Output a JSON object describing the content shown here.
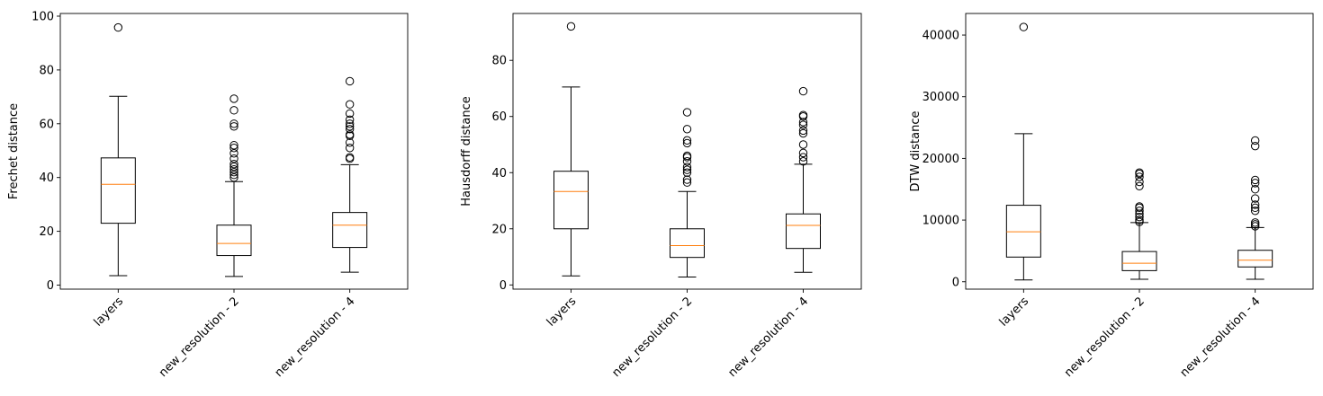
{
  "chart_data": [
    {
      "type": "box",
      "ylabel": "Frechet distance",
      "categories": [
        "layers",
        "new_resolution - 2",
        "new_resolution - 4"
      ],
      "yticks": [
        0,
        20,
        40,
        60,
        80,
        100
      ],
      "ylim": [
        -1.5,
        101
      ],
      "boxes": [
        {
          "whislo": 3.5,
          "q1": 23,
          "med": 37.5,
          "q3": 47.3,
          "whishi": 70.2,
          "fliers": [
            95.8
          ]
        },
        {
          "whislo": 3.2,
          "q1": 11,
          "med": 15.5,
          "q3": 22.3,
          "whishi": 38.5,
          "fliers": [
            40,
            41,
            42,
            43,
            44,
            45,
            47,
            49,
            51,
            52,
            59,
            60,
            65,
            69.3
          ]
        },
        {
          "whislo": 4.8,
          "q1": 14,
          "med": 22.3,
          "q3": 27,
          "whishi": 44.8,
          "fliers": [
            47,
            47.5,
            51,
            53,
            55.5,
            56,
            58,
            59,
            60,
            61.5,
            63.8,
            67.2,
            75.8
          ]
        }
      ]
    },
    {
      "type": "box",
      "ylabel": "Hausdorff distance",
      "categories": [
        "layers",
        "new_resolution - 2",
        "new_resolution - 4"
      ],
      "yticks": [
        0,
        20,
        40,
        60,
        80
      ],
      "ylim": [
        -1.5,
        96.7
      ],
      "boxes": [
        {
          "whislo": 3.2,
          "q1": 20,
          "med": 33.3,
          "q3": 40.5,
          "whishi": 70.5,
          "fliers": [
            92.1
          ]
        },
        {
          "whislo": 2.8,
          "q1": 9.8,
          "med": 14,
          "q3": 20,
          "whishi": 33.3,
          "fliers": [
            36.5,
            37.5,
            40,
            41,
            42,
            44,
            45.5,
            46,
            50.5,
            51.5,
            55.5,
            61.5
          ]
        },
        {
          "whislo": 4.5,
          "q1": 13,
          "med": 21.2,
          "q3": 25.3,
          "whishi": 43,
          "fliers": [
            44,
            45.5,
            47,
            50,
            54,
            55,
            57,
            58,
            60,
            60.5,
            69
          ]
        }
      ]
    },
    {
      "type": "box",
      "ylabel": "DTW distance",
      "categories": [
        "layers",
        "new_resolution - 2",
        "new_resolution - 4"
      ],
      "yticks": [
        0,
        10000,
        20000,
        30000,
        40000
      ],
      "ylim": [
        -1200,
        43500
      ],
      "boxes": [
        {
          "whislo": 300,
          "q1": 4000,
          "med": 8100,
          "q3": 12400,
          "whishi": 24000,
          "fliers": [
            41300
          ]
        },
        {
          "whislo": 400,
          "q1": 1800,
          "med": 3000,
          "q3": 4900,
          "whishi": 9600,
          "fliers": [
            9700,
            10000,
            10500,
            11000,
            11500,
            12000,
            12200,
            15500,
            16200,
            17000,
            17500,
            17700
          ]
        },
        {
          "whislo": 400,
          "q1": 2400,
          "med": 3500,
          "q3": 5100,
          "whishi": 8800,
          "fliers": [
            9000,
            9300,
            9600,
            11500,
            12000,
            12500,
            13500,
            15000,
            16000,
            16500,
            22000,
            22900
          ]
        }
      ]
    }
  ]
}
